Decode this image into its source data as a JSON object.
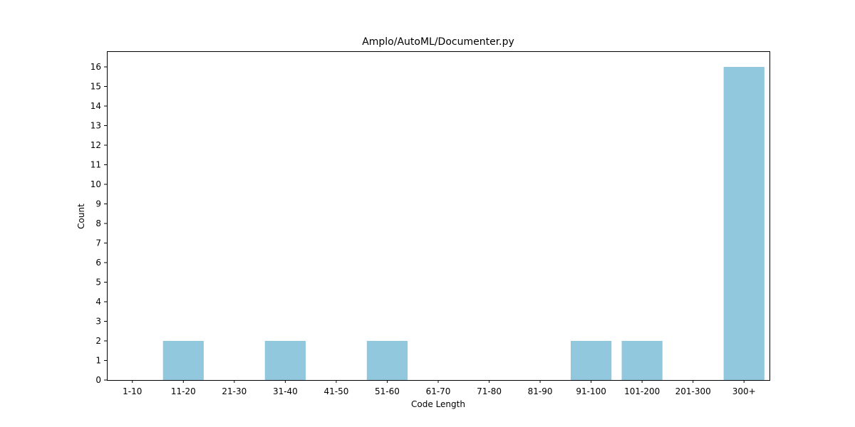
{
  "chart_data": {
    "type": "bar",
    "title": "Amplo/AutoML/Documenter.py",
    "xlabel": "Code Length",
    "ylabel": "Count",
    "categories": [
      "1-10",
      "11-20",
      "21-30",
      "31-40",
      "41-50",
      "51-60",
      "61-70",
      "71-80",
      "81-90",
      "91-100",
      "101-200",
      "201-300",
      "300+"
    ],
    "values": [
      0,
      2,
      0,
      2,
      0,
      2,
      0,
      0,
      0,
      2,
      2,
      0,
      16
    ],
    "ylim": [
      0,
      16.8
    ],
    "yticks": [
      0,
      1,
      2,
      3,
      4,
      5,
      6,
      7,
      8,
      9,
      10,
      11,
      12,
      13,
      14,
      15,
      16
    ],
    "bar_color": "#92c8dd",
    "grid": false,
    "legend": "none"
  }
}
